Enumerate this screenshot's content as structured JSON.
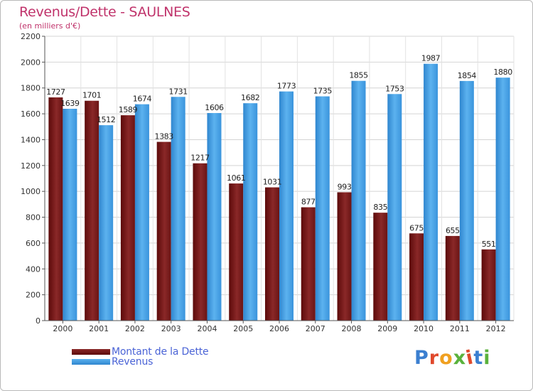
{
  "colors": {
    "dette": "#7a1a1a",
    "revenus": "#3d9be0",
    "title": "#c0336b",
    "legend_text": "#4a63d6"
  },
  "chart_data": {
    "type": "bar",
    "title": "Revenus/Dette - SAULNES",
    "subtitle": "(en milliers d'€)",
    "categories": [
      "2000",
      "2001",
      "2002",
      "2003",
      "2004",
      "2005",
      "2006",
      "2007",
      "2008",
      "2009",
      "2010",
      "2011",
      "2012"
    ],
    "series": [
      {
        "name": "Montant de la Dette",
        "values": [
          1727,
          1701,
          1589,
          1383,
          1217,
          1061,
          1031,
          877,
          993,
          835,
          675,
          655,
          551
        ],
        "labels": [
          "1727",
          "1701",
          "1589",
          "1383",
          "1217",
          "1061",
          "1031",
          "877",
          "993",
          "835",
          "675",
          "655",
          "551"
        ]
      },
      {
        "name": "Revenus",
        "values": [
          1639,
          1512,
          1674,
          1731,
          1606,
          1682,
          1773,
          1735,
          1855,
          1753,
          1987,
          1854,
          1880
        ],
        "labels": [
          "1639",
          "1512",
          "1674",
          "1731",
          "1606",
          "1682",
          "1773",
          "1735",
          "1855",
          "1753",
          "1987",
          "1854",
          "1880"
        ]
      }
    ],
    "ylim": [
      0,
      2200
    ],
    "yticks": [
      "0",
      "200",
      "400",
      "600",
      "800",
      "1000",
      "1200",
      "1400",
      "1600",
      "1800",
      "2000",
      "2200"
    ],
    "grid": true,
    "legend": "bottom-left"
  },
  "logo": {
    "text": "Proxiti",
    "letter_colors": [
      "#3b7fd0",
      "#e0492c",
      "#f0a020",
      "#5ab23c",
      "#e0492c",
      "#3b7fd0",
      "#5ab23c"
    ]
  }
}
